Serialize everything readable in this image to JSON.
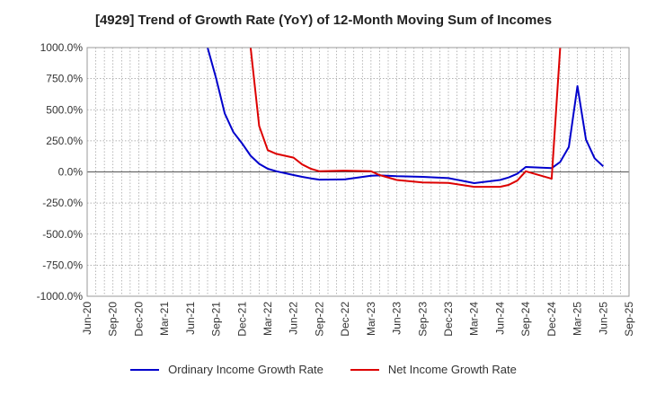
{
  "chart_data": {
    "type": "line",
    "title": "[4929]  Trend of Growth Rate (YoY) of 12-Month Moving Sum of Incomes",
    "xlabel": "",
    "ylabel": "",
    "ylim": [
      -1000,
      1000
    ],
    "y_ticks": [
      "1000.0%",
      "750.0%",
      "500.0%",
      "250.0%",
      "0.0%",
      "-250.0%",
      "-500.0%",
      "-750.0%",
      "-1000.0%"
    ],
    "x_ticks": [
      "Jun-20",
      "Sep-20",
      "Dec-20",
      "Mar-21",
      "Jun-21",
      "Sep-21",
      "Dec-21",
      "Mar-22",
      "Jun-22",
      "Sep-22",
      "Dec-22",
      "Mar-23",
      "Jun-23",
      "Sep-23",
      "Dec-23",
      "Mar-24",
      "Jun-24",
      "Sep-24",
      "Dec-24",
      "Mar-25",
      "Jun-25",
      "Sep-25"
    ],
    "grid": true,
    "legend_position": "bottom",
    "series": [
      {
        "name": "Ordinary Income Growth Rate",
        "color": "#0000cc",
        "points": [
          [
            "Aug-21",
            1000
          ],
          [
            "Sep-21",
            750
          ],
          [
            "Oct-21",
            470
          ],
          [
            "Nov-21",
            320
          ],
          [
            "Dec-21",
            230
          ],
          [
            "Jan-22",
            130
          ],
          [
            "Feb-22",
            65
          ],
          [
            "Mar-22",
            25
          ],
          [
            "Apr-22",
            5
          ],
          [
            "May-22",
            -10
          ],
          [
            "Jun-22",
            -25
          ],
          [
            "Jul-22",
            -40
          ],
          [
            "Aug-22",
            -52
          ],
          [
            "Sep-22",
            -62
          ],
          [
            "Dec-22",
            -60
          ],
          [
            "Mar-23",
            -30
          ],
          [
            "Apr-23",
            -28
          ],
          [
            "Jun-23",
            -35
          ],
          [
            "Sep-23",
            -40
          ],
          [
            "Dec-23",
            -50
          ],
          [
            "Mar-24",
            -90
          ],
          [
            "Jun-24",
            -65
          ],
          [
            "Jul-24",
            -45
          ],
          [
            "Aug-24",
            -15
          ],
          [
            "Sep-24",
            40
          ],
          [
            "Dec-24",
            30
          ],
          [
            "Jan-25",
            80
          ],
          [
            "Feb-25",
            200
          ],
          [
            "Mar-25",
            690
          ],
          [
            "Apr-25",
            260
          ],
          [
            "May-25",
            110
          ],
          [
            "Jun-25",
            45
          ]
        ]
      },
      {
        "name": "Net Income Growth Rate",
        "color": "#dd0000",
        "points": [
          [
            "Jan-22",
            1000
          ],
          [
            "Feb-22",
            370
          ],
          [
            "Mar-22",
            175
          ],
          [
            "Apr-22",
            145
          ],
          [
            "May-22",
            130
          ],
          [
            "Jun-22",
            115
          ],
          [
            "Jul-22",
            60
          ],
          [
            "Aug-22",
            25
          ],
          [
            "Sep-22",
            5
          ],
          [
            "Dec-22",
            10
          ],
          [
            "Mar-23",
            5
          ],
          [
            "Apr-23",
            -25
          ],
          [
            "Jun-23",
            -65
          ],
          [
            "Sep-23",
            -85
          ],
          [
            "Dec-23",
            -88
          ],
          [
            "Mar-24",
            -120
          ],
          [
            "Jun-24",
            -120
          ],
          [
            "Jul-24",
            -105
          ],
          [
            "Aug-24",
            -70
          ],
          [
            "Sep-24",
            5
          ],
          [
            "Dec-24",
            -55
          ],
          [
            "Jan-25",
            1000
          ]
        ]
      }
    ]
  }
}
